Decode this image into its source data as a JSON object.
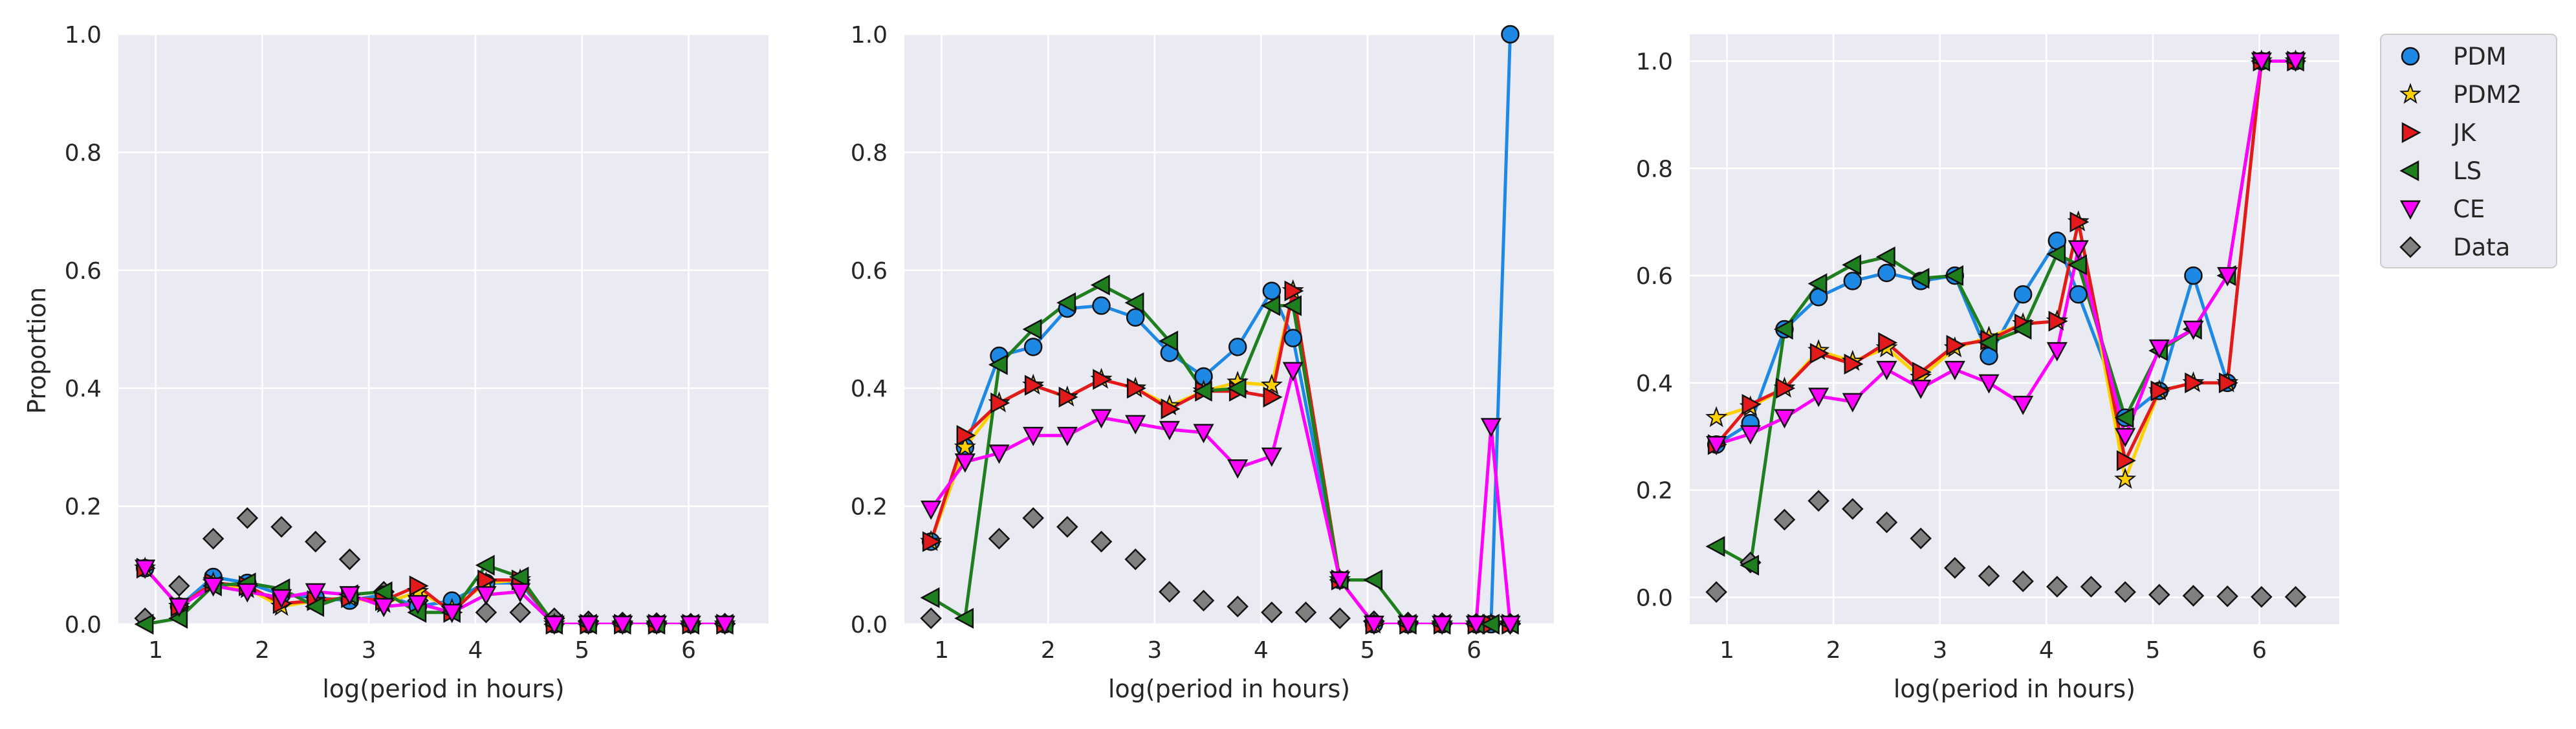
{
  "figure": {
    "ylabel": "Proportion",
    "xlabel": "log(period in hours)"
  },
  "legend": {
    "position": "right",
    "entries": [
      {
        "key": "PDM",
        "label": "PDM"
      },
      {
        "key": "PDM2",
        "label": "PDM2"
      },
      {
        "key": "JK",
        "label": "JK"
      },
      {
        "key": "LS",
        "label": "LS"
      },
      {
        "key": "CE",
        "label": "CE"
      },
      {
        "key": "Data",
        "label": "Data"
      }
    ]
  },
  "style": {
    "panel_bg": "#eaeaf2",
    "grid": "#ffffff",
    "text": "#262626",
    "series": {
      "PDM": {
        "color": "#1e88e5",
        "marker": "circle"
      },
      "PDM2": {
        "color": "#ffd000",
        "marker": "star"
      },
      "JK": {
        "color": "#e31a1c",
        "marker": "triangle-right"
      },
      "LS": {
        "color": "#1f7f1f",
        "marker": "triangle-left"
      },
      "CE": {
        "color": "#ff00ff",
        "marker": "triangle-down"
      },
      "Data": {
        "color": "#808080",
        "marker": "diamond"
      }
    }
  },
  "chart_data": [
    {
      "type": "line",
      "xlabel": "log(period in hours)",
      "ylabel": "Proportion",
      "xlim": [
        0.65,
        6.75
      ],
      "ylim": [
        0,
        1
      ],
      "xticks": [
        1,
        2,
        3,
        4,
        5,
        6
      ],
      "yticks": [
        0.0,
        0.2,
        0.4,
        0.6,
        0.8,
        1.0
      ],
      "grid": true,
      "x": [
        0.9,
        1.22,
        1.54,
        1.86,
        2.18,
        2.5,
        2.82,
        3.14,
        3.46,
        3.78,
        4.1,
        4.42,
        4.74,
        5.06,
        5.38,
        5.7,
        6.02,
        6.34
      ],
      "series": [
        {
          "name": "Data",
          "line": false,
          "values": [
            0.01,
            0.065,
            0.145,
            0.18,
            0.165,
            0.14,
            0.11,
            0.055,
            0.04,
            0.03,
            0.02,
            0.02,
            0.01,
            0.005,
            0.003,
            0.002,
            0.001,
            0.001
          ]
        },
        {
          "name": "PDM",
          "line": true,
          "values": [
            0.095,
            0.03,
            0.08,
            0.07,
            0.05,
            0.045,
            0.04,
            0.05,
            0.03,
            0.04,
            0.07,
            0.07,
            0.0,
            0.0,
            0.0,
            0.0,
            0.0,
            0.0
          ]
        },
        {
          "name": "PDM2",
          "line": true,
          "values": [
            0.095,
            0.03,
            0.07,
            0.06,
            0.03,
            0.04,
            0.045,
            0.035,
            0.055,
            0.025,
            0.07,
            0.075,
            0.0,
            0.0,
            0.0,
            0.0,
            0.0,
            0.0
          ]
        },
        {
          "name": "JK",
          "line": true,
          "values": [
            0.095,
            0.03,
            0.07,
            0.065,
            0.035,
            0.04,
            0.045,
            0.04,
            0.065,
            0.02,
            0.075,
            0.075,
            0.0,
            0.0,
            0.0,
            0.0,
            0.0,
            0.0
          ]
        },
        {
          "name": "LS",
          "line": true,
          "values": [
            0.0,
            0.01,
            0.065,
            0.07,
            0.06,
            0.03,
            0.05,
            0.055,
            0.02,
            0.02,
            0.1,
            0.08,
            0.0,
            0.0,
            0.0,
            0.0,
            0.0,
            0.0
          ]
        },
        {
          "name": "CE",
          "line": true,
          "values": [
            0.095,
            0.03,
            0.065,
            0.055,
            0.045,
            0.055,
            0.05,
            0.03,
            0.035,
            0.02,
            0.05,
            0.055,
            0.0,
            0.0,
            0.0,
            0.0,
            0.0,
            0.0
          ]
        }
      ]
    },
    {
      "type": "line",
      "xlabel": "log(period in hours)",
      "ylabel": "",
      "xlim": [
        0.65,
        6.75
      ],
      "ylim": [
        0,
        1
      ],
      "xticks": [
        1,
        2,
        3,
        4,
        5,
        6
      ],
      "yticks": [
        0.0,
        0.2,
        0.4,
        0.6,
        0.8,
        1.0
      ],
      "grid": true,
      "x": [
        0.9,
        1.22,
        1.54,
        1.86,
        2.18,
        2.5,
        2.82,
        3.14,
        3.46,
        3.78,
        4.1,
        4.3,
        4.42,
        4.74,
        5.06,
        5.38,
        5.7,
        6.02,
        6.16,
        6.34
      ],
      "series": [
        {
          "name": "Data",
          "line": false,
          "values": [
            0.01,
            null,
            0.145,
            0.18,
            0.165,
            0.14,
            0.11,
            0.055,
            0.04,
            0.03,
            0.02,
            null,
            0.02,
            0.01,
            0.005,
            0.003,
            0.002,
            0.001,
            null,
            0.001
          ]
        },
        {
          "name": "PDM",
          "line": true,
          "values": [
            0.14,
            0.3,
            0.455,
            0.47,
            0.535,
            0.54,
            0.52,
            0.46,
            0.42,
            0.47,
            0.565,
            0.485,
            null,
            0.075,
            0.0,
            0.0,
            0.0,
            0.0,
            0.0,
            1.0
          ]
        },
        {
          "name": "PDM2",
          "line": true,
          "values": [
            0.14,
            0.3,
            0.375,
            0.405,
            0.385,
            0.415,
            0.4,
            0.37,
            0.395,
            0.41,
            0.405,
            0.565,
            null,
            0.075,
            0.0,
            0.0,
            0.0,
            0.0,
            0.0,
            0.0
          ]
        },
        {
          "name": "JK",
          "line": true,
          "values": [
            0.14,
            0.32,
            0.375,
            0.405,
            0.385,
            0.415,
            0.4,
            0.365,
            0.395,
            0.395,
            0.385,
            0.565,
            null,
            0.075,
            0.0,
            0.0,
            0.0,
            0.0,
            0.0,
            0.0
          ]
        },
        {
          "name": "LS",
          "line": true,
          "values": [
            0.045,
            0.01,
            0.44,
            0.5,
            0.545,
            0.575,
            0.545,
            0.48,
            0.395,
            0.4,
            0.54,
            0.54,
            null,
            0.075,
            0.075,
            0.0,
            0.0,
            0.0,
            0.0,
            0.0
          ]
        },
        {
          "name": "CE",
          "line": true,
          "values": [
            0.195,
            0.275,
            0.29,
            0.32,
            0.32,
            0.35,
            0.34,
            0.33,
            0.325,
            0.265,
            0.285,
            0.43,
            null,
            0.075,
            0.0,
            0.0,
            0.0,
            0.0,
            0.335,
            0.0
          ]
        }
      ]
    },
    {
      "type": "line",
      "xlabel": "log(period in hours)",
      "ylabel": "",
      "xlim": [
        0.65,
        6.75
      ],
      "ylim": [
        -0.05,
        1.05
      ],
      "xticks": [
        1,
        2,
        3,
        4,
        5,
        6
      ],
      "yticks": [
        0.0,
        0.2,
        0.4,
        0.6,
        0.8,
        1.0
      ],
      "grid": true,
      "x": [
        0.9,
        1.22,
        1.54,
        1.86,
        2.18,
        2.5,
        2.82,
        3.14,
        3.46,
        3.78,
        4.1,
        4.3,
        4.42,
        4.74,
        5.06,
        5.38,
        5.7,
        6.02,
        6.34
      ],
      "series": [
        {
          "name": "Data",
          "line": false,
          "values": [
            0.01,
            0.065,
            0.145,
            0.18,
            0.165,
            0.14,
            0.11,
            0.055,
            0.04,
            0.03,
            0.02,
            null,
            0.02,
            0.01,
            0.005,
            0.003,
            0.002,
            0.001,
            0.001
          ]
        },
        {
          "name": "PDM",
          "line": true,
          "values": [
            0.285,
            0.325,
            0.5,
            0.56,
            0.59,
            0.605,
            0.59,
            0.6,
            0.45,
            0.565,
            0.665,
            0.565,
            null,
            0.335,
            0.385,
            0.6,
            0.4,
            1.0,
            1.0
          ]
        },
        {
          "name": "PDM2",
          "line": true,
          "values": [
            0.335,
            0.355,
            0.39,
            0.46,
            0.44,
            0.465,
            0.41,
            0.465,
            0.485,
            0.51,
            0.515,
            0.7,
            null,
            0.22,
            0.385,
            0.4,
            0.4,
            1.0,
            1.0
          ]
        },
        {
          "name": "JK",
          "line": true,
          "values": [
            0.285,
            0.36,
            0.39,
            0.455,
            0.435,
            0.475,
            0.42,
            0.47,
            0.48,
            0.51,
            0.515,
            0.7,
            null,
            0.255,
            0.385,
            0.4,
            0.4,
            1.0,
            1.0
          ]
        },
        {
          "name": "LS",
          "line": true,
          "values": [
            0.095,
            0.06,
            0.5,
            0.585,
            0.62,
            0.635,
            0.595,
            0.6,
            0.475,
            0.5,
            0.64,
            0.62,
            null,
            0.335,
            0.46,
            0.5,
            0.6,
            1.0,
            1.0
          ]
        },
        {
          "name": "CE",
          "line": true,
          "values": [
            0.285,
            0.305,
            0.335,
            0.375,
            0.365,
            0.425,
            0.39,
            0.425,
            0.4,
            0.36,
            0.46,
            0.65,
            null,
            0.3,
            0.465,
            0.5,
            0.6,
            1.0,
            1.0
          ]
        }
      ]
    }
  ]
}
